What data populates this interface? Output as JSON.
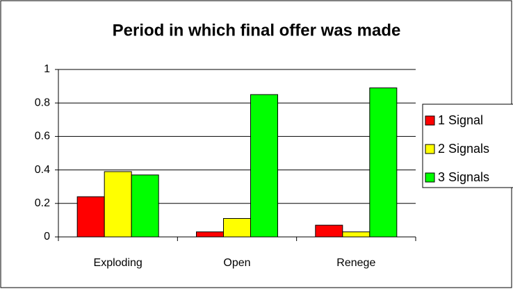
{
  "chart_data": {
    "type": "bar",
    "title": "Period in which final offer was made",
    "categories": [
      "Exploding",
      "Open",
      "Renege"
    ],
    "series": [
      {
        "name": "1 Signal",
        "color": "#ff0000",
        "values": [
          0.24,
          0.03,
          0.07
        ]
      },
      {
        "name": "2 Signals",
        "color": "#ffff00",
        "values": [
          0.39,
          0.11,
          0.03
        ]
      },
      {
        "name": "3 Signals",
        "color": "#00ff00",
        "values": [
          0.37,
          0.85,
          0.89
        ]
      }
    ],
    "ylim": [
      0,
      1
    ],
    "yticks": [
      0,
      0.2,
      0.4,
      0.6,
      0.8,
      1
    ],
    "grid": true,
    "legend": "right"
  }
}
